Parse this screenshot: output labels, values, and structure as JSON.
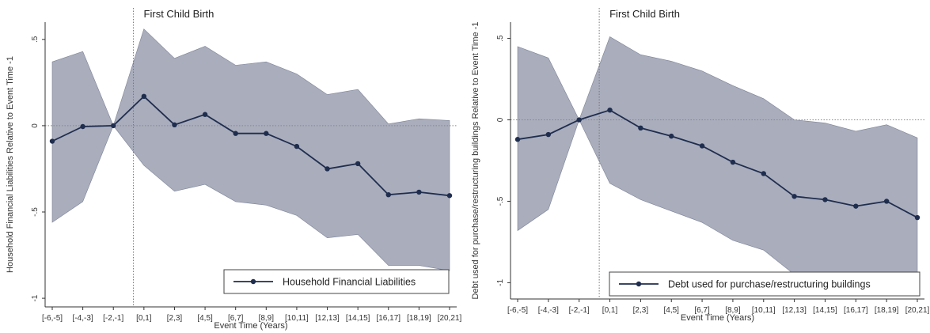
{
  "chart_data": [
    {
      "type": "line",
      "annotation": "First Child Birth",
      "xlabel": "Event Time (Years)",
      "ylabel": "Household Financial Liabilities Relative to Event Time -1",
      "categories": [
        "[-6,-5]",
        "[-4,-3]",
        "[-2,-1]",
        "[0,1]",
        "[2,3]",
        "[4,5]",
        "[6,7]",
        "[8,9]",
        "[10,11]",
        "[12,13]",
        "[14,15]",
        "[16,17]",
        "[18,19]",
        "[20,21]"
      ],
      "ylim": [
        -1.05,
        0.6
      ],
      "yticks": [
        -1,
        -0.5,
        0,
        0.5
      ],
      "ytick_labels": [
        "-1",
        "-.5",
        "0",
        ".5"
      ],
      "event_line_category": "[0,1]",
      "legend": "bottom-right",
      "colors": {
        "line": "#1f2d4e",
        "band": "#8c92a6"
      },
      "series": [
        {
          "name": "Household Financial Liabilities",
          "values": [
            -0.09,
            -0.005,
            0.0,
            0.17,
            0.005,
            0.065,
            -0.045,
            -0.045,
            -0.12,
            -0.25,
            -0.22,
            -0.4,
            -0.385,
            -0.405
          ],
          "ci_upper": [
            0.37,
            0.43,
            0.0,
            0.56,
            0.39,
            0.46,
            0.35,
            0.37,
            0.3,
            0.18,
            0.21,
            0.01,
            0.04,
            0.03
          ],
          "ci_lower": [
            -0.56,
            -0.44,
            0.0,
            -0.23,
            -0.38,
            -0.34,
            -0.44,
            -0.46,
            -0.52,
            -0.65,
            -0.63,
            -0.81,
            -0.81,
            -0.84
          ]
        }
      ]
    },
    {
      "type": "line",
      "annotation": "First Child Birth",
      "xlabel": "Event Time (Years)",
      "ylabel": "Debt used for purchase/restructuring buildings Relative to Event Time -1",
      "categories": [
        "[-6,-5]",
        "[-4,-3]",
        "[-2,-1]",
        "[0,1]",
        "[2,3]",
        "[4,5]",
        "[6,7]",
        "[8,9]",
        "[10,11]",
        "[12,13]",
        "[14,15]",
        "[16,17]",
        "[18,19]",
        "[20,21]"
      ],
      "ylim": [
        -1.1,
        0.6
      ],
      "yticks": [
        -1,
        -0.5,
        0,
        0.5
      ],
      "ytick_labels": [
        "-1",
        "-.5",
        "0",
        ".5"
      ],
      "event_line_category": "[0,1]",
      "legend": "bottom-right",
      "colors": {
        "line": "#1f2d4e",
        "band": "#8c92a6"
      },
      "series": [
        {
          "name": "Debt used for purchase/restructuring buildings",
          "values": [
            -0.12,
            -0.09,
            0.0,
            0.06,
            -0.05,
            -0.1,
            -0.16,
            -0.26,
            -0.33,
            -0.47,
            -0.49,
            -0.53,
            -0.5,
            -0.6
          ],
          "ci_upper": [
            0.45,
            0.38,
            0.0,
            0.51,
            0.4,
            0.36,
            0.3,
            0.21,
            0.13,
            0.0,
            -0.02,
            -0.07,
            -0.03,
            -0.11
          ],
          "ci_lower": [
            -0.68,
            -0.55,
            0.0,
            -0.39,
            -0.49,
            -0.56,
            -0.63,
            -0.74,
            -0.8,
            -0.95,
            -0.97,
            -0.99,
            -0.97,
            -1.08
          ]
        }
      ]
    }
  ]
}
